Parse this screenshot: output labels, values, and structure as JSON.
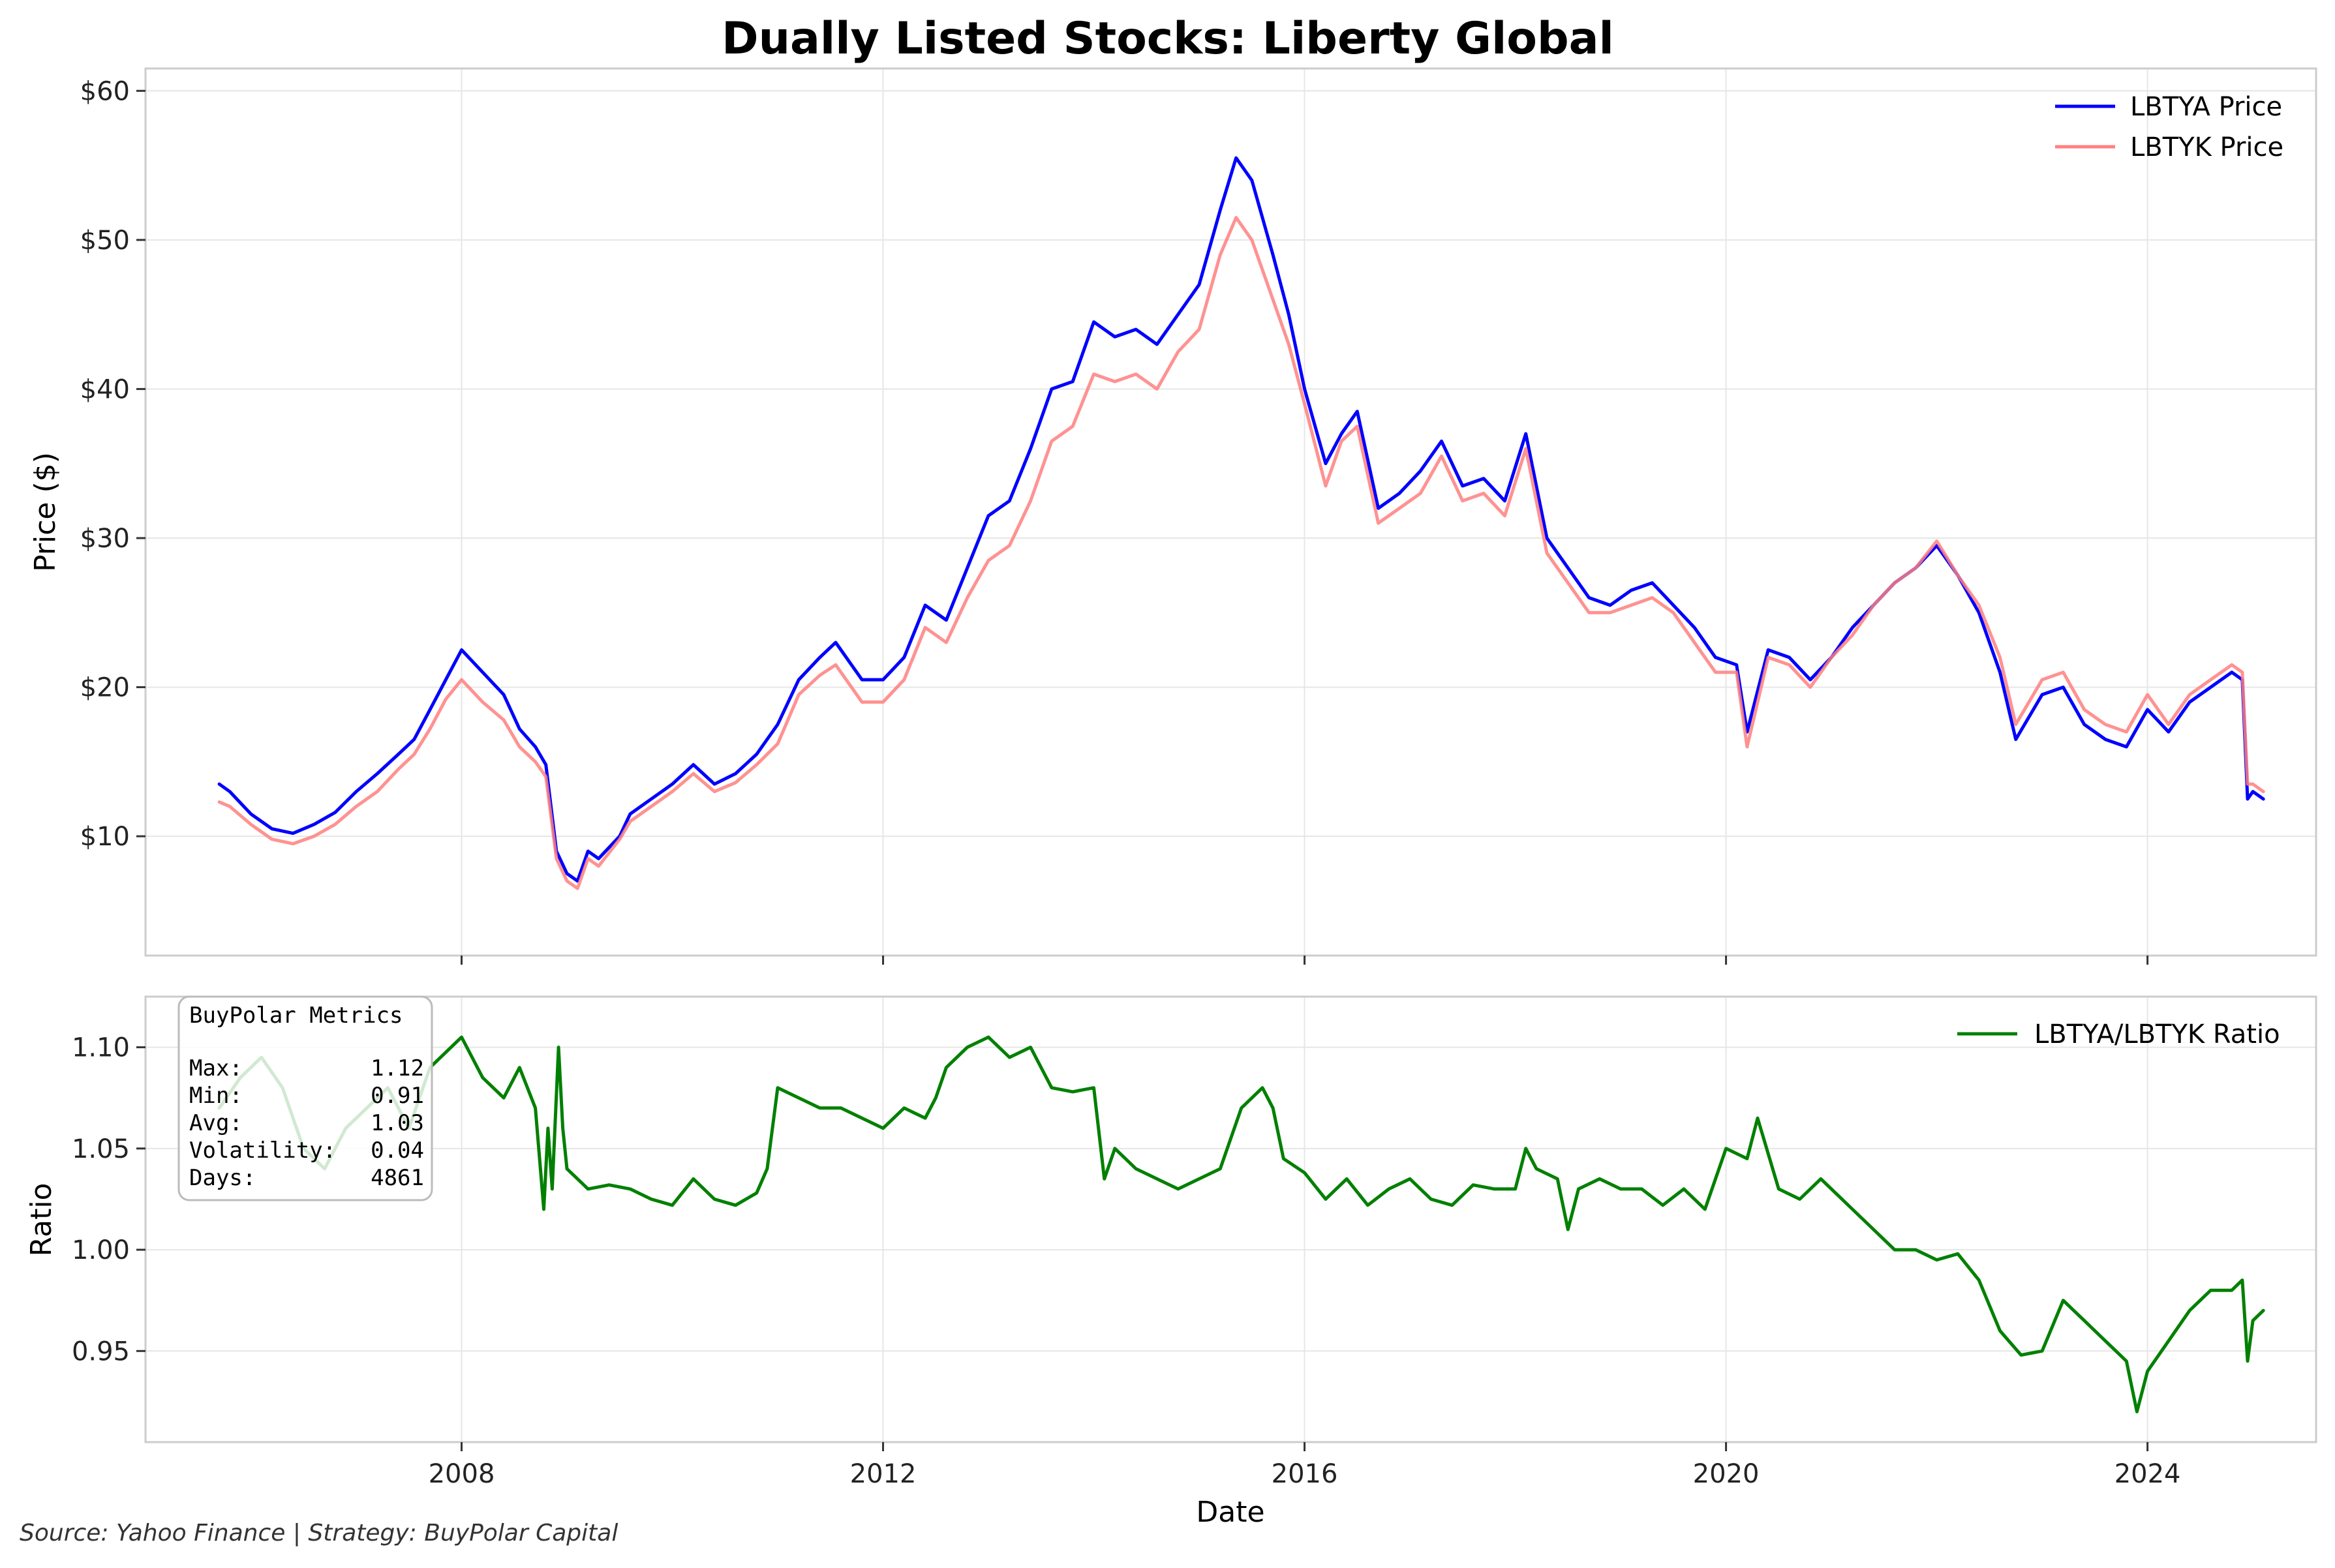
{
  "chart_data": [
    {
      "type": "line",
      "title": "Dually Listed Stocks: Liberty Global",
      "ylabel": "Price ($)",
      "xlim": [
        2005.0,
        2025.6
      ],
      "ylim": [
        2.0,
        61.5
      ],
      "yticks": [
        10,
        20,
        30,
        40,
        50,
        60
      ],
      "ytick_labels": [
        "$10",
        "$20",
        "$30",
        "$40",
        "$50",
        "$60"
      ],
      "grid": true,
      "legend": "top-right",
      "series": [
        {
          "name": "LBTYA Price",
          "color": "#0000ff",
          "x": [
            2005.7,
            2005.8,
            2006.0,
            2006.2,
            2006.4,
            2006.6,
            2006.8,
            2007.0,
            2007.2,
            2007.4,
            2007.55,
            2007.7,
            2007.85,
            2008.0,
            2008.2,
            2008.4,
            2008.55,
            2008.7,
            2008.8,
            2008.9,
            2009.0,
            2009.1,
            2009.2,
            2009.3,
            2009.5,
            2009.6,
            2009.8,
            2010.0,
            2010.2,
            2010.4,
            2010.6,
            2010.8,
            2011.0,
            2011.2,
            2011.4,
            2011.55,
            2011.7,
            2011.8,
            2012.0,
            2012.2,
            2012.4,
            2012.6,
            2012.8,
            2013.0,
            2013.2,
            2013.4,
            2013.6,
            2013.8,
            2014.0,
            2014.2,
            2014.4,
            2014.6,
            2014.8,
            2015.0,
            2015.2,
            2015.35,
            2015.5,
            2015.7,
            2015.85,
            2016.0,
            2016.2,
            2016.35,
            2016.5,
            2016.7,
            2016.9,
            2017.1,
            2017.3,
            2017.5,
            2017.7,
            2017.9,
            2018.1,
            2018.3,
            2018.5,
            2018.7,
            2018.9,
            2019.1,
            2019.3,
            2019.5,
            2019.7,
            2019.9,
            2020.1,
            2020.2,
            2020.4,
            2020.6,
            2020.8,
            2021.0,
            2021.2,
            2021.4,
            2021.6,
            2021.8,
            2022.0,
            2022.2,
            2022.4,
            2022.6,
            2022.75,
            2023.0,
            2023.2,
            2023.4,
            2023.6,
            2023.8,
            2024.0,
            2024.2,
            2024.4,
            2024.6,
            2024.8,
            2024.9,
            2024.95,
            2025.0,
            2025.1
          ],
          "y": [
            13.5,
            13.0,
            11.5,
            10.5,
            10.2,
            10.8,
            11.6,
            13.0,
            14.2,
            15.5,
            16.5,
            18.5,
            20.5,
            22.5,
            21.0,
            19.5,
            17.2,
            16.0,
            14.8,
            9.0,
            7.5,
            7.0,
            9.0,
            8.5,
            10.0,
            11.5,
            12.5,
            13.5,
            14.8,
            13.5,
            14.2,
            15.5,
            17.5,
            20.5,
            22.0,
            23.0,
            21.5,
            20.5,
            20.5,
            22.0,
            25.5,
            24.5,
            28.0,
            31.5,
            32.5,
            36.0,
            40.0,
            40.5,
            44.5,
            43.5,
            44.0,
            43.0,
            45.0,
            47.0,
            52.0,
            55.5,
            54.0,
            49.0,
            45.0,
            40.0,
            35.0,
            37.0,
            38.5,
            32.0,
            33.0,
            34.5,
            36.5,
            33.5,
            34.0,
            32.5,
            37.0,
            30.0,
            28.0,
            26.0,
            25.5,
            26.5,
            27.0,
            25.5,
            24.0,
            22.0,
            21.5,
            17.0,
            22.5,
            22.0,
            20.5,
            22.0,
            24.0,
            25.5,
            27.0,
            28.0,
            29.5,
            27.5,
            25.0,
            21.0,
            16.5,
            19.5,
            20.0,
            17.5,
            16.5,
            16.0,
            18.5,
            17.0,
            19.0,
            20.0,
            21.0,
            20.5,
            12.5,
            13.0,
            12.5
          ]
        },
        {
          "name": "LBTYK Price",
          "color": "#ff7f7f",
          "x": [
            2005.7,
            2005.8,
            2006.0,
            2006.2,
            2006.4,
            2006.6,
            2006.8,
            2007.0,
            2007.2,
            2007.4,
            2007.55,
            2007.7,
            2007.85,
            2008.0,
            2008.2,
            2008.4,
            2008.55,
            2008.7,
            2008.8,
            2008.9,
            2009.0,
            2009.1,
            2009.2,
            2009.3,
            2009.5,
            2009.6,
            2009.8,
            2010.0,
            2010.2,
            2010.4,
            2010.6,
            2010.8,
            2011.0,
            2011.2,
            2011.4,
            2011.55,
            2011.7,
            2011.8,
            2012.0,
            2012.2,
            2012.4,
            2012.6,
            2012.8,
            2013.0,
            2013.2,
            2013.4,
            2013.6,
            2013.8,
            2014.0,
            2014.2,
            2014.4,
            2014.6,
            2014.8,
            2015.0,
            2015.2,
            2015.35,
            2015.5,
            2015.7,
            2015.85,
            2016.0,
            2016.2,
            2016.35,
            2016.5,
            2016.7,
            2016.9,
            2017.1,
            2017.3,
            2017.5,
            2017.7,
            2017.9,
            2018.1,
            2018.3,
            2018.5,
            2018.7,
            2018.9,
            2019.1,
            2019.3,
            2019.5,
            2019.7,
            2019.9,
            2020.1,
            2020.2,
            2020.4,
            2020.6,
            2020.8,
            2021.0,
            2021.2,
            2021.4,
            2021.6,
            2021.8,
            2022.0,
            2022.2,
            2022.4,
            2022.6,
            2022.75,
            2023.0,
            2023.2,
            2023.4,
            2023.6,
            2023.8,
            2024.0,
            2024.2,
            2024.4,
            2024.6,
            2024.8,
            2024.9,
            2024.95,
            2025.0,
            2025.1
          ],
          "y": [
            12.3,
            12.0,
            10.8,
            9.8,
            9.5,
            10.0,
            10.8,
            12.0,
            13.0,
            14.5,
            15.5,
            17.2,
            19.2,
            20.5,
            19.0,
            17.8,
            16.0,
            15.0,
            14.0,
            8.5,
            7.0,
            6.5,
            8.5,
            8.0,
            9.8,
            11.0,
            12.0,
            13.0,
            14.2,
            13.0,
            13.6,
            14.8,
            16.2,
            19.5,
            20.8,
            21.5,
            20.0,
            19.0,
            19.0,
            20.5,
            24.0,
            23.0,
            26.0,
            28.5,
            29.5,
            32.5,
            36.5,
            37.5,
            41.0,
            40.5,
            41.0,
            40.0,
            42.5,
            44.0,
            49.0,
            51.5,
            50.0,
            46.0,
            43.0,
            39.0,
            33.5,
            36.5,
            37.5,
            31.0,
            32.0,
            33.0,
            35.5,
            32.5,
            33.0,
            31.5,
            36.0,
            29.0,
            27.0,
            25.0,
            25.0,
            25.5,
            26.0,
            25.0,
            23.0,
            21.0,
            21.0,
            16.0,
            22.0,
            21.5,
            20.0,
            22.0,
            23.5,
            25.5,
            27.0,
            28.0,
            29.8,
            27.5,
            25.5,
            22.0,
            17.5,
            20.5,
            21.0,
            18.5,
            17.5,
            17.0,
            19.5,
            17.5,
            19.5,
            20.5,
            21.5,
            21.0,
            13.5,
            13.5,
            13.0
          ]
        }
      ]
    },
    {
      "type": "line",
      "xlabel": "Date",
      "ylabel": "Ratio",
      "xlim": [
        2005.0,
        2025.6
      ],
      "ylim": [
        0.905,
        1.125
      ],
      "yticks": [
        0.95,
        1.0,
        1.05,
        1.1
      ],
      "ytick_labels": [
        "0.95",
        "1.00",
        "1.05",
        "1.10"
      ],
      "xticks": [
        2008,
        2012,
        2016,
        2020,
        2024
      ],
      "xtick_labels": [
        "2008",
        "2012",
        "2016",
        "2020",
        "2024"
      ],
      "grid": true,
      "legend": "top-right",
      "series": [
        {
          "name": "LBTYA/LBTYK Ratio",
          "color": "#008000",
          "x": [
            2005.7,
            2005.9,
            2006.1,
            2006.3,
            2006.5,
            2006.7,
            2006.9,
            2007.1,
            2007.3,
            2007.5,
            2007.7,
            2007.9,
            2008.0,
            2008.2,
            2008.4,
            2008.55,
            2008.7,
            2008.78,
            2008.82,
            2008.86,
            2008.92,
            2008.96,
            2009.0,
            2009.2,
            2009.4,
            2009.6,
            2009.8,
            2010.0,
            2010.2,
            2010.4,
            2010.6,
            2010.8,
            2010.9,
            2011.0,
            2011.2,
            2011.4,
            2011.6,
            2011.8,
            2012.0,
            2012.2,
            2012.4,
            2012.5,
            2012.6,
            2012.8,
            2013.0,
            2013.2,
            2013.4,
            2013.6,
            2013.8,
            2014.0,
            2014.1,
            2014.2,
            2014.4,
            2014.6,
            2014.8,
            2015.0,
            2015.2,
            2015.4,
            2015.6,
            2015.7,
            2015.8,
            2016.0,
            2016.2,
            2016.4,
            2016.6,
            2016.8,
            2017.0,
            2017.2,
            2017.4,
            2017.6,
            2017.8,
            2018.0,
            2018.1,
            2018.2,
            2018.4,
            2018.5,
            2018.6,
            2018.8,
            2019.0,
            2019.2,
            2019.4,
            2019.6,
            2019.8,
            2020.0,
            2020.2,
            2020.3,
            2020.5,
            2020.7,
            2020.9,
            2021.0,
            2021.2,
            2021.4,
            2021.6,
            2021.8,
            2022.0,
            2022.2,
            2022.4,
            2022.6,
            2022.8,
            2023.0,
            2023.2,
            2023.4,
            2023.6,
            2023.8,
            2023.9,
            2024.0,
            2024.2,
            2024.4,
            2024.6,
            2024.8,
            2024.9,
            2024.95,
            2025.0,
            2025.1
          ],
          "y": [
            1.07,
            1.085,
            1.095,
            1.08,
            1.05,
            1.04,
            1.06,
            1.07,
            1.08,
            1.06,
            1.09,
            1.1,
            1.105,
            1.085,
            1.075,
            1.09,
            1.07,
            1.02,
            1.06,
            1.03,
            1.1,
            1.06,
            1.04,
            1.03,
            1.032,
            1.03,
            1.025,
            1.022,
            1.035,
            1.025,
            1.022,
            1.028,
            1.04,
            1.08,
            1.075,
            1.07,
            1.07,
            1.065,
            1.06,
            1.07,
            1.065,
            1.075,
            1.09,
            1.1,
            1.105,
            1.095,
            1.1,
            1.08,
            1.078,
            1.08,
            1.035,
            1.05,
            1.04,
            1.035,
            1.03,
            1.035,
            1.04,
            1.07,
            1.08,
            1.07,
            1.045,
            1.038,
            1.025,
            1.035,
            1.022,
            1.03,
            1.035,
            1.025,
            1.022,
            1.032,
            1.03,
            1.03,
            1.05,
            1.04,
            1.035,
            1.01,
            1.03,
            1.035,
            1.03,
            1.03,
            1.022,
            1.03,
            1.02,
            1.05,
            1.045,
            1.065,
            1.03,
            1.025,
            1.035,
            1.03,
            1.02,
            1.01,
            1.0,
            1.0,
            0.995,
            0.998,
            0.985,
            0.96,
            0.948,
            0.95,
            0.975,
            0.965,
            0.955,
            0.945,
            0.92,
            0.94,
            0.955,
            0.97,
            0.98,
            0.98,
            0.985,
            0.945,
            0.965,
            0.97
          ]
        }
      ],
      "metrics_box": {
        "title": "BuyPolar Metrics",
        "rows": [
          {
            "label": "Max:",
            "value": "1.12"
          },
          {
            "label": "Min:",
            "value": "0.91"
          },
          {
            "label": "Avg:",
            "value": "1.03"
          },
          {
            "label": "Volatility:",
            "value": "0.04"
          },
          {
            "label": "Days:",
            "value": "4861"
          }
        ]
      }
    }
  ],
  "footer": "Source: Yahoo Finance | Strategy: BuyPolar Capital"
}
